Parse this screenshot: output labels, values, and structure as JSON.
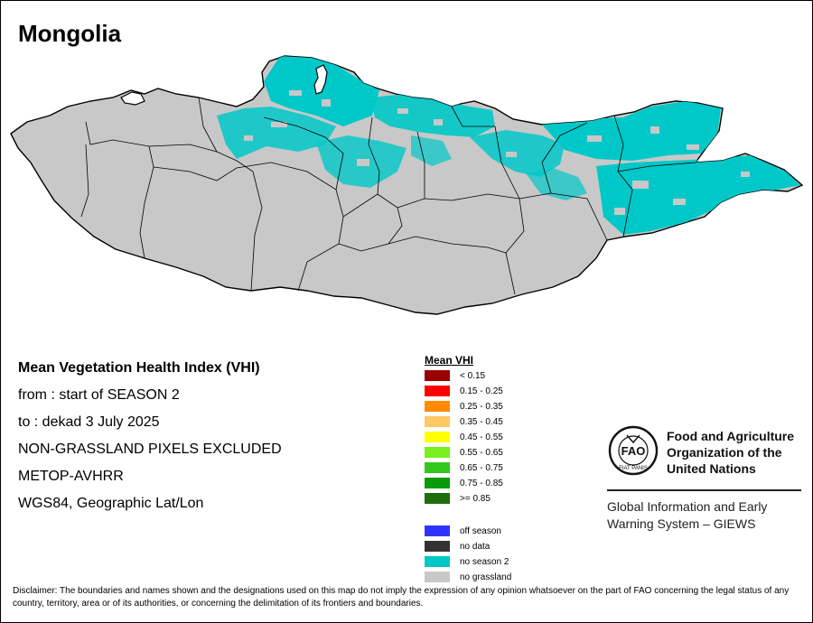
{
  "title": "Mongolia",
  "info": {
    "heading": "Mean Vegetation Health Index (VHI)",
    "from": "from    : start of SEASON 2",
    "to": "to      : dekad 3 July 2025",
    "excluded": "NON-GRASSLAND PIXELS EXCLUDED",
    "sensor": "METOP-AVHRR",
    "projection": "WGS84, Geographic Lat/Lon"
  },
  "legend": {
    "title": "Mean VHI",
    "classes": [
      {
        "label": "< 0.15",
        "color": "#990000"
      },
      {
        "label": "0.15 - 0.25",
        "color": "#ff0000"
      },
      {
        "label": "0.25 - 0.35",
        "color": "#ff8c00"
      },
      {
        "label": "0.35 - 0.45",
        "color": "#ffc864"
      },
      {
        "label": "0.45 - 0.55",
        "color": "#ffff00"
      },
      {
        "label": "0.55 - 0.65",
        "color": "#78f01e"
      },
      {
        "label": "0.65 - 0.75",
        "color": "#32c81e"
      },
      {
        "label": "0.75 - 0.85",
        "color": "#0a9b0a"
      },
      {
        "label": ">= 0.85",
        "color": "#1e6e0a"
      }
    ],
    "extra": [
      {
        "label": "off season",
        "color": "#3232ff"
      },
      {
        "label": "no data",
        "color": "#323232"
      },
      {
        "label": "no season 2",
        "color": "#00c8c8"
      },
      {
        "label": "no grassland",
        "color": "#c8c8c8"
      }
    ]
  },
  "fao": {
    "logo_text": "FAO",
    "logo_motto": "FIAT PANIS",
    "name_line1": "Food and Agriculture",
    "name_line2": "Organization of the",
    "name_line3": "United Nations",
    "giews_line1": "Global Information and Early",
    "giews_line2": "Warning System – GIEWS"
  },
  "disclaimer": "Disclaimer: The boundaries and names shown and the designations used on this map do not imply the expression of any opinion whatsoever on the part of FAO concerning the legal status of any country, territory, area or of its authorities, or concerning the delimitation of its frontiers and boundaries.",
  "colors": {
    "land": "#c8c8c8",
    "no_season": "#00c8c8",
    "border": "#000000"
  }
}
